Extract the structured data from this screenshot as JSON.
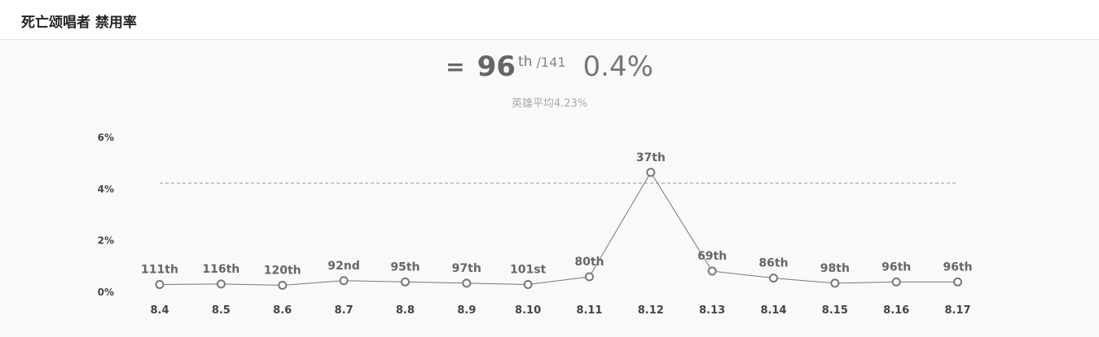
{
  "header": {
    "title": "死亡颂唱者 禁用率"
  },
  "summary": {
    "symbol": "=",
    "rank": "96",
    "rank_suffix": "th",
    "total": "/141",
    "rate": "0.4%",
    "average_label": "英雄平均4.23%"
  },
  "chart_data": {
    "type": "line",
    "categories": [
      "8.4",
      "8.5",
      "8.6",
      "8.7",
      "8.8",
      "8.9",
      "8.10",
      "8.11",
      "8.12",
      "8.13",
      "8.14",
      "8.15",
      "8.16",
      "8.17"
    ],
    "series": [
      {
        "values": [
          0.3,
          0.32,
          0.27,
          0.45,
          0.4,
          0.35,
          0.3,
          0.6,
          4.65,
          0.82,
          0.55,
          0.35,
          0.4,
          0.4
        ],
        "point_labels": [
          "111th",
          "116th",
          "120th",
          "92nd",
          "95th",
          "97th",
          "101st",
          "80th",
          "37th",
          "69th",
          "86th",
          "98th",
          "96th",
          "96th"
        ]
      }
    ],
    "reference_line": {
      "value": 4.23,
      "style": "dashed"
    },
    "y_ticks": [
      "0%",
      "2%",
      "4%",
      "6%"
    ],
    "ylim": [
      0,
      6
    ],
    "grid": false,
    "colors": {
      "line": "#777777",
      "marker_stroke": "#777777",
      "marker_fill": "#ffffff",
      "reference": "#999999"
    }
  }
}
